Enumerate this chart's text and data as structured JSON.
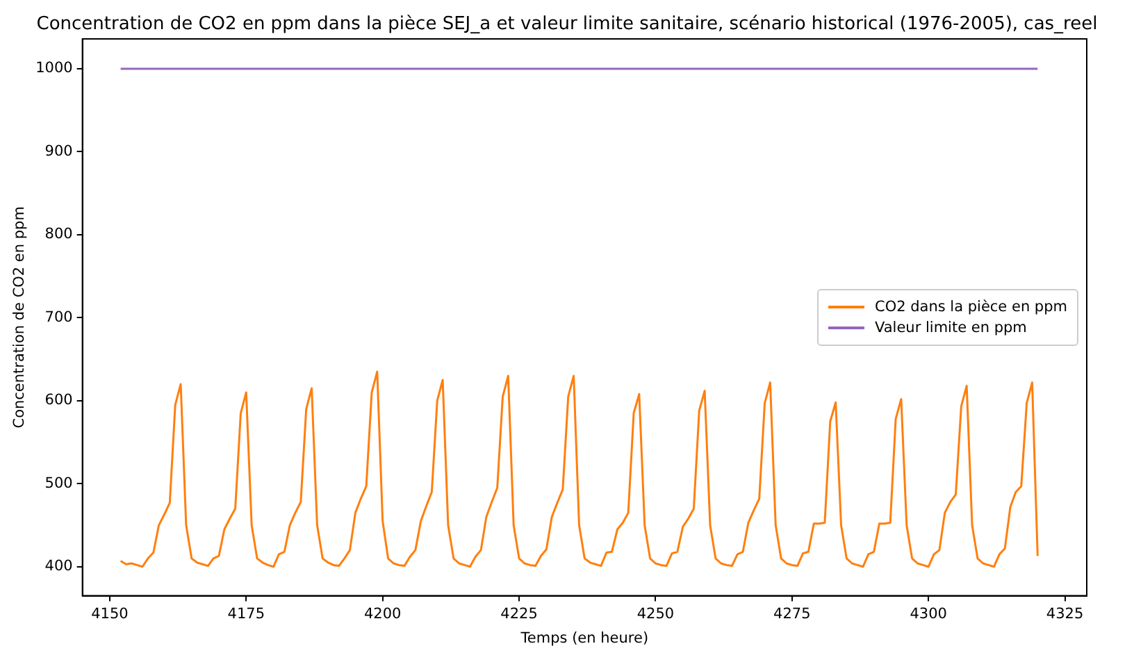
{
  "chart_data": {
    "type": "line",
    "title": "Concentration de CO2 en ppm dans la pièce SEJ_a et valeur limite sanitaire, scénario historical (1976-2005), cas_reel",
    "xlabel": "Temps (en heure)",
    "ylabel": "Concentration de CO2 en ppm",
    "series": [
      {
        "name": "CO2 dans la pièce en ppm",
        "color": "#ff7f0e",
        "x": [
          4152,
          4153,
          4154,
          4155,
          4156,
          4157,
          4158,
          4159,
          4160,
          4161,
          4162,
          4163,
          4164,
          4165,
          4166,
          4167,
          4168,
          4169,
          4170,
          4171,
          4172,
          4173,
          4174,
          4175,
          4176,
          4177,
          4178,
          4179,
          4180,
          4181,
          4182,
          4183,
          4184,
          4185,
          4186,
          4187,
          4188,
          4189,
          4190,
          4191,
          4192,
          4193,
          4194,
          4195,
          4196,
          4197,
          4198,
          4199,
          4200,
          4201,
          4202,
          4203,
          4204,
          4205,
          4206,
          4207,
          4208,
          4209,
          4210,
          4211,
          4212,
          4213,
          4214,
          4215,
          4216,
          4217,
          4218,
          4219,
          4220,
          4221,
          4222,
          4223,
          4224,
          4225,
          4226,
          4227,
          4228,
          4229,
          4230,
          4231,
          4232,
          4233,
          4234,
          4235,
          4236,
          4237,
          4238,
          4239,
          4240,
          4241,
          4242,
          4243,
          4244,
          4245,
          4246,
          4247,
          4248,
          4249,
          4250,
          4251,
          4252,
          4253,
          4254,
          4255,
          4256,
          4257,
          4258,
          4259,
          4260,
          4261,
          4262,
          4263,
          4264,
          4265,
          4266,
          4267,
          4268,
          4269,
          4270,
          4271,
          4272,
          4273,
          4274,
          4275,
          4276,
          4277,
          4278,
          4279,
          4280,
          4281,
          4282,
          4283,
          4284,
          4285,
          4286,
          4287,
          4288,
          4289,
          4290,
          4291,
          4292,
          4293,
          4294,
          4295,
          4296,
          4297,
          4298,
          4299,
          4300,
          4301,
          4302,
          4303,
          4304,
          4305,
          4306,
          4307,
          4308,
          4309,
          4310,
          4311,
          4312,
          4313,
          4314,
          4315,
          4316,
          4317,
          4318,
          4319,
          4320
        ],
        "values": [
          407,
          403,
          404,
          402,
          400,
          410,
          417,
          450,
          463,
          477,
          595,
          620,
          450,
          410,
          405,
          403,
          401,
          410,
          413,
          445,
          458,
          470,
          585,
          610,
          450,
          410,
          405,
          402,
          400,
          415,
          418,
          450,
          465,
          478,
          590,
          615,
          450,
          410,
          405,
          402,
          401,
          410,
          420,
          465,
          482,
          497,
          610,
          635,
          455,
          410,
          404,
          402,
          401,
          412,
          420,
          455,
          473,
          490,
          600,
          625,
          450,
          410,
          404,
          402,
          400,
          412,
          420,
          460,
          478,
          495,
          605,
          630,
          450,
          410,
          404,
          402,
          401,
          413,
          421,
          460,
          477,
          493,
          605,
          630,
          450,
          410,
          405,
          403,
          401,
          417,
          418,
          445,
          453,
          465,
          585,
          608,
          450,
          410,
          404,
          402,
          401,
          416,
          418,
          448,
          458,
          470,
          588,
          612,
          450,
          410,
          404,
          402,
          401,
          415,
          418,
          453,
          468,
          482,
          597,
          622,
          450,
          410,
          404,
          402,
          401,
          416,
          418,
          452,
          452,
          453,
          575,
          598,
          450,
          410,
          404,
          402,
          400,
          415,
          418,
          452,
          452,
          453,
          578,
          602,
          450,
          410,
          404,
          402,
          400,
          415,
          420,
          465,
          478,
          487,
          593,
          618,
          450,
          410,
          404,
          402,
          400,
          415,
          422,
          472,
          490,
          497,
          597,
          622,
          413
        ]
      },
      {
        "name": "Valeur limite en ppm",
        "color": "#9467bd",
        "x": [
          4152,
          4320
        ],
        "values": [
          1000,
          1000
        ]
      }
    ],
    "xlim": [
      4145,
      4329
    ],
    "xticks": [
      4150,
      4175,
      4200,
      4225,
      4250,
      4275,
      4300,
      4325
    ],
    "ylim": [
      365,
      1036
    ],
    "yticks": [
      400,
      500,
      600,
      700,
      800,
      900,
      1000
    ],
    "grid": false,
    "legend": "right",
    "marker": "none",
    "line_style": "solid"
  }
}
